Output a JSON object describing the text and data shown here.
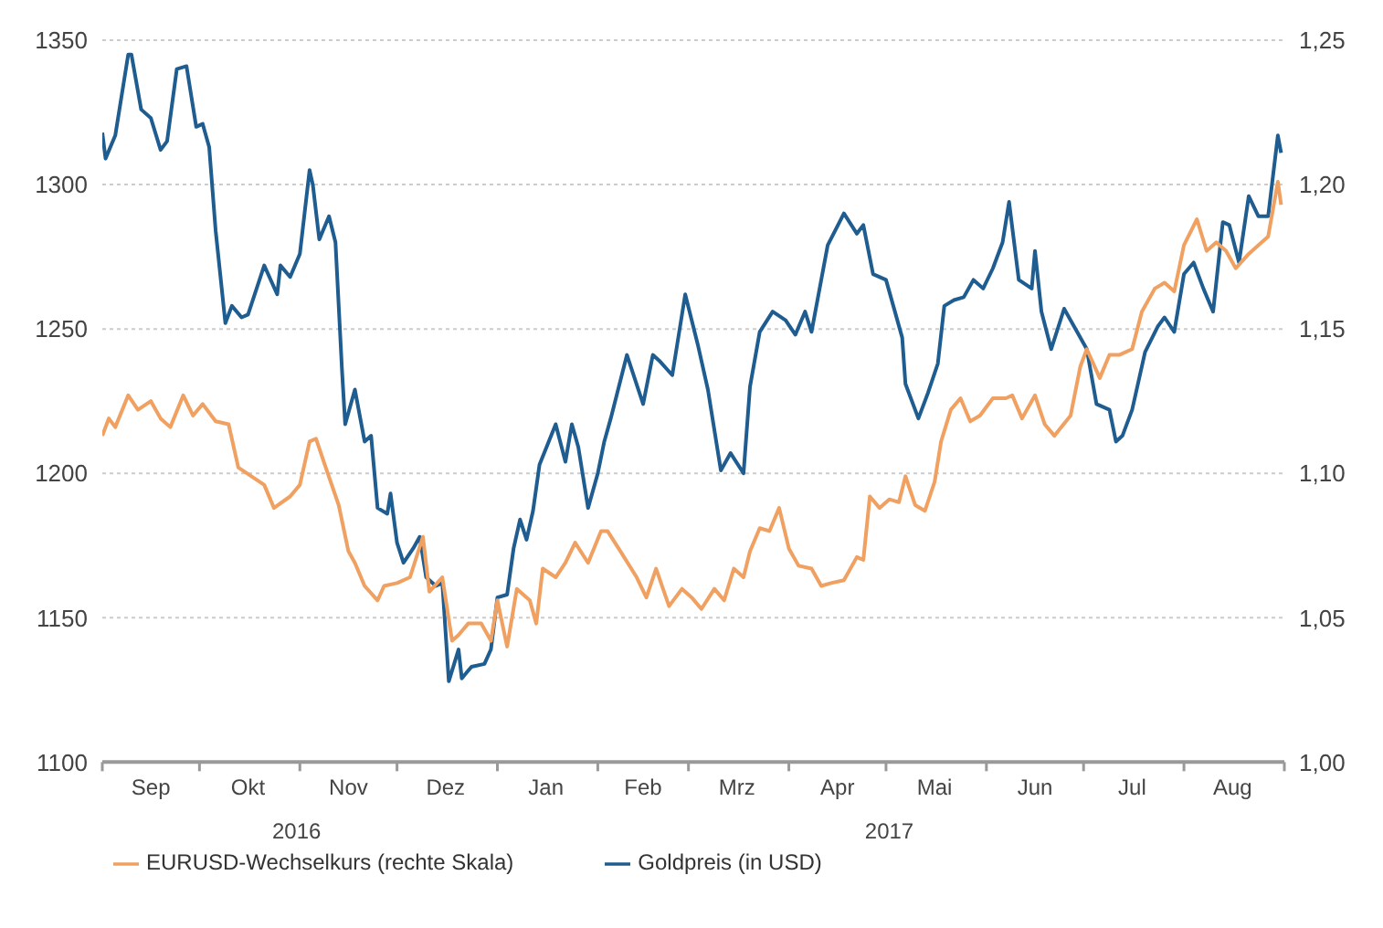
{
  "chart_data": {
    "type": "line",
    "xlim": [
      "2016-09-01",
      "2017-09-01"
    ],
    "xticks": [
      {
        "value": "2016-09-01",
        "label": null
      },
      {
        "value": "2016-09-16",
        "label": "Sep"
      },
      {
        "value": "2016-10-01",
        "label": null
      },
      {
        "value": "2016-10-16",
        "label": "Okt"
      },
      {
        "value": "2016-11-01",
        "label": null
      },
      {
        "value": "2016-11-16",
        "label": "Nov"
      },
      {
        "value": "2016-12-01",
        "label": null
      },
      {
        "value": "2016-12-16",
        "label": "Dez"
      },
      {
        "value": "2017-01-01",
        "label": null
      },
      {
        "value": "2017-01-16",
        "label": "Jan"
      },
      {
        "value": "2017-02-01",
        "label": null
      },
      {
        "value": "2017-02-15",
        "label": "Feb"
      },
      {
        "value": "2017-03-01",
        "label": null
      },
      {
        "value": "2017-03-16",
        "label": "Mrz"
      },
      {
        "value": "2017-04-01",
        "label": null
      },
      {
        "value": "2017-04-16",
        "label": "Apr"
      },
      {
        "value": "2017-05-01",
        "label": null
      },
      {
        "value": "2017-05-16",
        "label": "Mai"
      },
      {
        "value": "2017-06-01",
        "label": null
      },
      {
        "value": "2017-06-16",
        "label": "Jun"
      },
      {
        "value": "2017-07-01",
        "label": null
      },
      {
        "value": "2017-07-16",
        "label": "Jul"
      },
      {
        "value": "2017-08-01",
        "label": null
      },
      {
        "value": "2017-08-16",
        "label": "Aug"
      },
      {
        "value": "2017-09-01",
        "label": null
      }
    ],
    "x2lim": [
      "2016-09-01",
      "2017-09-01"
    ],
    "x2ticks": [
      {
        "value": "2016-10-31",
        "label": "2016"
      },
      {
        "value": "2017-05-02",
        "label": "2017"
      }
    ],
    "ylim": [
      1100,
      1350
    ],
    "yticks": [
      1100,
      1150,
      1200,
      1250,
      1300,
      1350
    ],
    "y2lim": [
      1.0,
      1.25
    ],
    "y2ticks": [
      {
        "value": 1.0,
        "label": "1,00"
      },
      {
        "value": 1.05,
        "label": "1,05"
      },
      {
        "value": 1.1,
        "label": "1,10"
      },
      {
        "value": 1.15,
        "label": "1,15"
      },
      {
        "value": 1.2,
        "label": "1,20"
      },
      {
        "value": 1.25,
        "label": "1,25"
      }
    ],
    "grid": "y",
    "legend": "bottom left",
    "marker": "none",
    "line_style": "solid",
    "series": [
      {
        "name": "Goldpreis (in USD)",
        "color": "#1f5d91",
        "axis": "y",
        "x": [
          "2016-09-01",
          "2016-09-02",
          "2016-09-05",
          "2016-09-09",
          "2016-09-10",
          "2016-09-13",
          "2016-09-16",
          "2016-09-19",
          "2016-09-21",
          "2016-09-24",
          "2016-09-27",
          "2016-09-30",
          "2016-10-02",
          "2016-10-04",
          "2016-10-06",
          "2016-10-09",
          "2016-10-11",
          "2016-10-14",
          "2016-10-16",
          "2016-10-21",
          "2016-10-25",
          "2016-10-26",
          "2016-10-29",
          "2016-11-01",
          "2016-11-04",
          "2016-11-05",
          "2016-11-07",
          "2016-11-10",
          "2016-11-12",
          "2016-11-14",
          "2016-11-15",
          "2016-11-18",
          "2016-11-21",
          "2016-11-23",
          "2016-11-25",
          "2016-11-28",
          "2016-11-29",
          "2016-12-01",
          "2016-12-03",
          "2016-12-06",
          "2016-12-08",
          "2016-12-10",
          "2016-12-13",
          "2016-12-15",
          "2016-12-17",
          "2016-12-20",
          "2016-12-21",
          "2016-12-24",
          "2016-12-28",
          "2016-12-30",
          "2017-01-01",
          "2017-01-04",
          "2017-01-06",
          "2017-01-08",
          "2017-01-10",
          "2017-01-12",
          "2017-01-14",
          "2017-01-19",
          "2017-01-22",
          "2017-01-24",
          "2017-01-26",
          "2017-01-29",
          "2017-02-01",
          "2017-02-03",
          "2017-02-05",
          "2017-02-10",
          "2017-02-15",
          "2017-02-18",
          "2017-02-20",
          "2017-02-24",
          "2017-02-28",
          "2017-03-04",
          "2017-03-07",
          "2017-03-11",
          "2017-03-14",
          "2017-03-18",
          "2017-03-20",
          "2017-03-23",
          "2017-03-27",
          "2017-03-31",
          "2017-04-03",
          "2017-04-06",
          "2017-04-08",
          "2017-04-11",
          "2017-04-13",
          "2017-04-18",
          "2017-04-22",
          "2017-04-24",
          "2017-04-27",
          "2017-05-01",
          "2017-05-06",
          "2017-05-07",
          "2017-05-11",
          "2017-05-14",
          "2017-05-17",
          "2017-05-19",
          "2017-05-22",
          "2017-05-25",
          "2017-05-28",
          "2017-05-31",
          "2017-06-03",
          "2017-06-06",
          "2017-06-08",
          "2017-06-11",
          "2017-06-15",
          "2017-06-16",
          "2017-06-18",
          "2017-06-21",
          "2017-06-25",
          "2017-06-29",
          "2017-07-02",
          "2017-07-05",
          "2017-07-09",
          "2017-07-11",
          "2017-07-13",
          "2017-07-16",
          "2017-07-20",
          "2017-07-24",
          "2017-07-26",
          "2017-07-29",
          "2017-08-01",
          "2017-08-04",
          "2017-08-07",
          "2017-08-10",
          "2017-08-13",
          "2017-08-15",
          "2017-08-18",
          "2017-08-21",
          "2017-08-24",
          "2017-08-27",
          "2017-08-30",
          "2017-08-31"
        ],
        "values": [
          1318,
          1309,
          1317,
          1345,
          1345,
          1326,
          1323,
          1312,
          1315,
          1340,
          1341,
          1320,
          1321,
          1313,
          1284,
          1252,
          1258,
          1254,
          1255,
          1272,
          1262,
          1272,
          1268,
          1276,
          1305,
          1300,
          1281,
          1289,
          1280,
          1236,
          1217,
          1229,
          1211,
          1213,
          1188,
          1186,
          1193,
          1176,
          1169,
          1174,
          1178,
          1164,
          1161,
          1162,
          1128,
          1139,
          1129,
          1133,
          1134,
          1139,
          1157,
          1158,
          1174,
          1184,
          1177,
          1187,
          1203,
          1217,
          1204,
          1217,
          1209,
          1188,
          1200,
          1211,
          1219,
          1241,
          1224,
          1241,
          1239,
          1234,
          1262,
          1244,
          1229,
          1201,
          1207,
          1200,
          1230,
          1249,
          1256,
          1253,
          1248,
          1256,
          1249,
          1267,
          1279,
          1290,
          1283,
          1286,
          1269,
          1267,
          1247,
          1231,
          1219,
          1228,
          1238,
          1258,
          1260,
          1261,
          1267,
          1264,
          1271,
          1280,
          1294,
          1267,
          1264,
          1277,
          1256,
          1243,
          1257,
          1249,
          1243,
          1224,
          1222,
          1211,
          1213,
          1222,
          1242,
          1251,
          1254,
          1249,
          1269,
          1273,
          1264,
          1256,
          1287,
          1286,
          1273,
          1296,
          1289,
          1289,
          1317,
          1311
        ]
      },
      {
        "name": "EURUSD-Wechselkurs (rechte Skala)",
        "color": "#f0a060",
        "axis": "y2",
        "x": [
          "2016-09-01",
          "2016-09-03",
          "2016-09-05",
          "2016-09-09",
          "2016-09-12",
          "2016-09-16",
          "2016-09-19",
          "2016-09-22",
          "2016-09-26",
          "2016-09-29",
          "2016-10-02",
          "2016-10-06",
          "2016-10-10",
          "2016-10-13",
          "2016-10-17",
          "2016-10-21",
          "2016-10-24",
          "2016-10-29",
          "2016-11-01",
          "2016-11-04",
          "2016-11-06",
          "2016-11-09",
          "2016-11-13",
          "2016-11-16",
          "2016-11-18",
          "2016-11-21",
          "2016-11-25",
          "2016-11-27",
          "2016-12-01",
          "2016-12-05",
          "2016-12-09",
          "2016-12-11",
          "2016-12-15",
          "2016-12-18",
          "2016-12-20",
          "2016-12-23",
          "2016-12-27",
          "2016-12-30",
          "2017-01-01",
          "2017-01-04",
          "2017-01-07",
          "2017-01-11",
          "2017-01-13",
          "2017-01-15",
          "2017-01-19",
          "2017-01-22",
          "2017-01-25",
          "2017-01-29",
          "2017-02-02",
          "2017-02-04",
          "2017-02-08",
          "2017-02-13",
          "2017-02-16",
          "2017-02-19",
          "2017-02-23",
          "2017-02-27",
          "2017-03-02",
          "2017-03-05",
          "2017-03-09",
          "2017-03-12",
          "2017-03-15",
          "2017-03-18",
          "2017-03-20",
          "2017-03-23",
          "2017-03-26",
          "2017-03-29",
          "2017-04-01",
          "2017-04-04",
          "2017-04-08",
          "2017-04-11",
          "2017-04-14",
          "2017-04-18",
          "2017-04-22",
          "2017-04-24",
          "2017-04-26",
          "2017-04-29",
          "2017-05-02",
          "2017-05-05",
          "2017-05-07",
          "2017-05-10",
          "2017-05-13",
          "2017-05-16",
          "2017-05-18",
          "2017-05-21",
          "2017-05-24",
          "2017-05-27",
          "2017-05-30",
          "2017-06-03",
          "2017-06-07",
          "2017-06-09",
          "2017-06-12",
          "2017-06-16",
          "2017-06-19",
          "2017-06-22",
          "2017-06-27",
          "2017-06-30",
          "2017-07-02",
          "2017-07-06",
          "2017-07-09",
          "2017-07-12",
          "2017-07-16",
          "2017-07-19",
          "2017-07-23",
          "2017-07-26",
          "2017-07-29",
          "2017-08-01",
          "2017-08-05",
          "2017-08-08",
          "2017-08-11",
          "2017-08-14",
          "2017-08-17",
          "2017-08-21",
          "2017-08-25",
          "2017-08-27",
          "2017-08-30",
          "2017-08-31"
        ],
        "values": [
          1.113,
          1.119,
          1.116,
          1.127,
          1.122,
          1.125,
          1.119,
          1.116,
          1.127,
          1.12,
          1.124,
          1.118,
          1.117,
          1.102,
          1.099,
          1.096,
          1.088,
          1.092,
          1.096,
          1.111,
          1.112,
          1.102,
          1.089,
          1.073,
          1.069,
          1.061,
          1.056,
          1.061,
          1.062,
          1.064,
          1.078,
          1.059,
          1.064,
          1.042,
          1.044,
          1.048,
          1.048,
          1.042,
          1.056,
          1.04,
          1.06,
          1.056,
          1.048,
          1.067,
          1.064,
          1.069,
          1.076,
          1.069,
          1.08,
          1.08,
          1.073,
          1.064,
          1.057,
          1.067,
          1.054,
          1.06,
          1.057,
          1.053,
          1.06,
          1.056,
          1.067,
          1.064,
          1.073,
          1.081,
          1.08,
          1.088,
          1.074,
          1.068,
          1.067,
          1.061,
          1.062,
          1.063,
          1.071,
          1.07,
          1.092,
          1.088,
          1.091,
          1.09,
          1.099,
          1.089,
          1.087,
          1.097,
          1.111,
          1.122,
          1.126,
          1.118,
          1.12,
          1.126,
          1.126,
          1.127,
          1.119,
          1.127,
          1.117,
          1.113,
          1.12,
          1.137,
          1.143,
          1.133,
          1.141,
          1.141,
          1.143,
          1.156,
          1.164,
          1.166,
          1.163,
          1.179,
          1.188,
          1.177,
          1.18,
          1.177,
          1.171,
          1.176,
          1.18,
          1.182,
          1.201,
          1.193
        ]
      }
    ]
  }
}
